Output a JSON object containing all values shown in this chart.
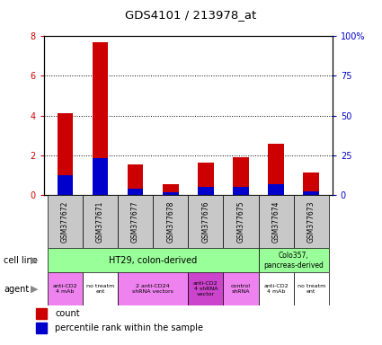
{
  "title": "GDS4101 / 213978_at",
  "samples": [
    "GSM377672",
    "GSM377671",
    "GSM377677",
    "GSM377678",
    "GSM377676",
    "GSM377675",
    "GSM377674",
    "GSM377673"
  ],
  "count_values": [
    4.1,
    7.7,
    1.55,
    0.55,
    1.65,
    1.9,
    2.6,
    1.15
  ],
  "percentile_values": [
    1.0,
    1.85,
    0.3,
    0.15,
    0.4,
    0.4,
    0.55,
    0.2
  ],
  "ylim_left": [
    0,
    8
  ],
  "ylim_right": [
    0,
    100
  ],
  "yticks_left": [
    0,
    2,
    4,
    6,
    8
  ],
  "yticks_right": [
    0,
    25,
    50,
    75,
    100
  ],
  "ytick_labels_right": [
    "0",
    "25",
    "50",
    "75",
    "100%"
  ],
  "bar_color_count": "#cc0000",
  "bar_color_pct": "#0000cc",
  "cell_line_ht29_color": "#99ff99",
  "cell_line_colo_color": "#99ff99",
  "agent_pink_color": "#ee82ee",
  "agent_white_color": "#ffffff",
  "agent_purple_color": "#cc44cc",
  "tick_label_bg": "#c8c8c8",
  "left_label_color": "#cc0000",
  "right_label_color": "#0000cc",
  "legend_count_label": "count",
  "legend_pct_label": "percentile rank within the sample",
  "cell_line_label": "cell line",
  "agent_label": "agent",
  "agent_groups": [
    {
      "label": "anti-CD2\n4 mAb",
      "cols": [
        0
      ],
      "color": "#ee82ee"
    },
    {
      "label": "no treatm\nent",
      "cols": [
        1
      ],
      "color": "#ffffff"
    },
    {
      "label": "2 anti-CD24\nshRNA vectors",
      "cols": [
        2,
        3
      ],
      "color": "#ee82ee"
    },
    {
      "label": "anti-CD2\n4 shRNA\nvector",
      "cols": [
        4
      ],
      "color": "#cc44cc"
    },
    {
      "label": "control\nshRNA",
      "cols": [
        5
      ],
      "color": "#ee82ee"
    },
    {
      "label": "anti-CD2\n4 mAb",
      "cols": [
        6
      ],
      "color": "#ffffff"
    },
    {
      "label": "no treatm\nent",
      "cols": [
        7
      ],
      "color": "#ffffff"
    }
  ]
}
